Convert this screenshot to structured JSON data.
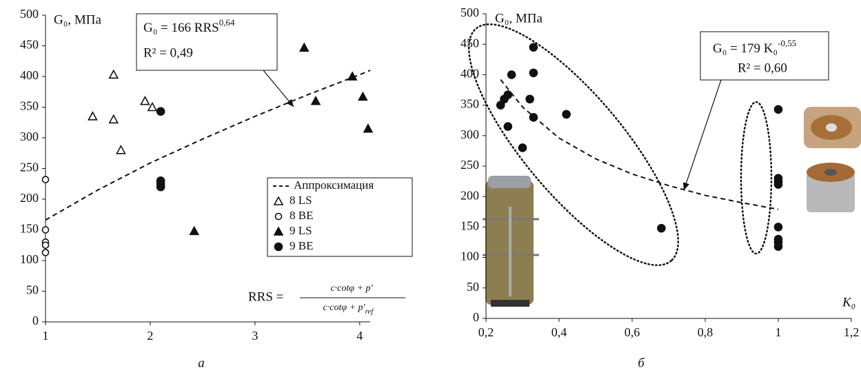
{
  "chart_data": [
    {
      "type": "scatter",
      "panel_label": "а",
      "ylabel": "G₀, МПа",
      "legend": true,
      "xlim": [
        1,
        4.1
      ],
      "ylim": [
        0,
        500
      ],
      "xticks": [
        1,
        2,
        3,
        4
      ],
      "yticks": [
        0,
        50,
        100,
        150,
        200,
        250,
        300,
        350,
        400,
        450,
        500
      ],
      "series": [
        {
          "name": "Аппроксимация",
          "kind": "line",
          "color": "#111",
          "x": [
            1,
            1.5,
            2,
            2.5,
            3,
            3.5,
            4,
            4.1
          ],
          "values": [
            166,
            215,
            259,
            298,
            335,
            370,
            403,
            410
          ]
        },
        {
          "name": "8 LS",
          "marker": "triangle",
          "filled": false,
          "color": "#111",
          "x": [
            1.45,
            1.65,
            1.65,
            1.72,
            1.95,
            2.02
          ],
          "values": [
            335,
            403,
            330,
            280,
            360,
            350
          ]
        },
        {
          "name": "8 BE",
          "marker": "circle",
          "filled": false,
          "color": "#111",
          "x": [
            1,
            1,
            1,
            1,
            1
          ],
          "values": [
            232,
            150,
            130,
            125,
            113
          ]
        },
        {
          "name": "9 LS",
          "marker": "triangle",
          "filled": true,
          "color": "#111",
          "x": [
            3.47,
            3.93,
            3.58,
            4.03,
            4.08,
            2.42
          ],
          "values": [
            447,
            400,
            360,
            367,
            315,
            148
          ]
        },
        {
          "name": "9 BE",
          "marker": "circle",
          "filled": true,
          "color": "#111",
          "x": [
            2.1,
            2.1,
            2.1,
            2.1
          ],
          "values": [
            343,
            230,
            225,
            220
          ]
        }
      ],
      "fit_label": {
        "base": "G₀ = 166 RRS",
        "exponent": "0,64"
      },
      "r2_label": "R² = 0,49",
      "formula": {
        "lhs": "RRS =",
        "numerator": "c·cotφ + p′",
        "denominator": "c·cotφ + p′",
        "denominator_sub": "ref"
      }
    },
    {
      "type": "scatter",
      "panel_label": "б",
      "ylabel": "G₀, МПа",
      "xlabel": "K₀",
      "legend": false,
      "xlim": [
        0.2,
        1.2
      ],
      "ylim": [
        0,
        500
      ],
      "xticks": [
        {
          "value": 0.2,
          "label": "0,2"
        },
        {
          "value": 0.4,
          "label": "0,4"
        },
        {
          "value": 0.6,
          "label": "0,6"
        },
        {
          "value": 0.8,
          "label": "0,8"
        },
        1,
        {
          "value": 1.2,
          "label": "1,2"
        }
      ],
      "yticks": [
        0,
        50,
        100,
        150,
        200,
        250,
        300,
        350,
        400,
        450,
        500
      ],
      "series": [
        {
          "kind": "line",
          "color": "#111",
          "x": [
            0.24,
            0.3,
            0.4,
            0.5,
            0.6,
            0.7,
            0.8,
            0.9,
            1
          ],
          "values": [
            392,
            347,
            296,
            262,
            237,
            218,
            202,
            190,
            179
          ]
        },
        {
          "marker": "circle",
          "filled": true,
          "color": "#111",
          "x": [
            0.24,
            0.25,
            0.26,
            0.27,
            0.26,
            0.3,
            0.32,
            0.33,
            0.33,
            0.33,
            0.42,
            0.68,
            1,
            1,
            1,
            1,
            1,
            1,
            1,
            1
          ],
          "values": [
            350,
            360,
            367,
            400,
            315,
            280,
            360,
            403,
            445,
            330,
            335,
            148,
            343,
            230,
            225,
            220,
            150,
            130,
            125,
            118
          ]
        }
      ],
      "fit_label": {
        "base": "G₀ = 179 K₀",
        "exponent": "-0,55"
      },
      "r2_label": "R² = 0,60"
    }
  ]
}
